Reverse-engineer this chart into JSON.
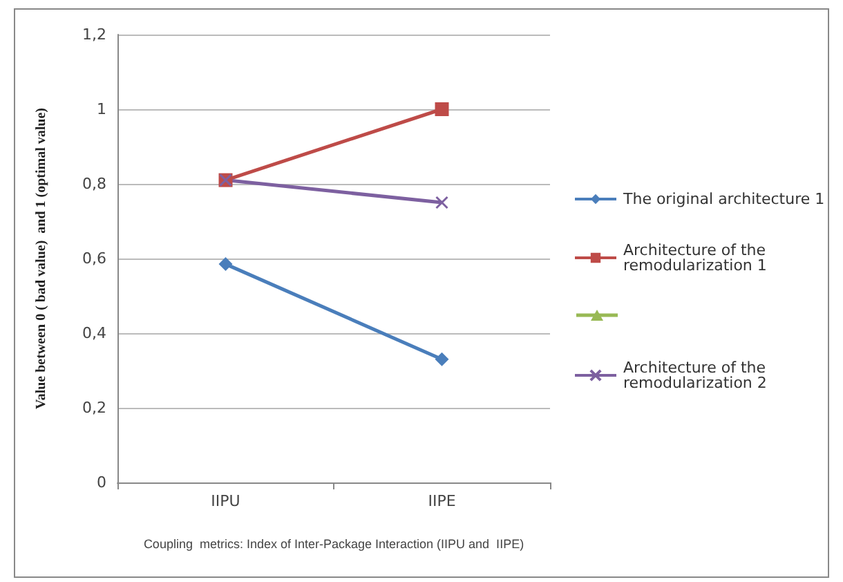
{
  "chart_data": {
    "type": "line",
    "categories": [
      "IIPU",
      "IIPE"
    ],
    "xlabel": "Coupling  metrics: Index of Inter-Package Interaction (IIPU and  IIPE)",
    "ylabel": "Value between 0 ( bad value)  and 1 (optimal value)",
    "ylim": [
      0,
      1.2
    ],
    "yticks": [
      0,
      {
        "value": 0.2,
        "label": "0,2"
      },
      {
        "value": 0.4,
        "label": "0,4"
      },
      {
        "value": 0.6,
        "label": "0,6"
      },
      {
        "value": 0.8,
        "label": "0,8"
      },
      1,
      {
        "value": 1.2,
        "label": "1,2"
      }
    ],
    "grid": "y",
    "legend": "right",
    "series": [
      {
        "name": "The original architecture 1",
        "color": "#4a7ebb",
        "marker": "diamond",
        "values": [
          0.585,
          0.33
        ]
      },
      {
        "name": "Architecture of the remodularization 1",
        "color": "#be4b48",
        "marker": "square",
        "values": [
          0.81,
          1.0
        ]
      },
      {
        "color": "#98b954",
        "marker": "triangle",
        "values": [
          null,
          null
        ]
      },
      {
        "name": "Architecture of the remodularization 2",
        "color": "#7d60a0",
        "marker": "cross",
        "values": [
          0.81,
          0.75
        ]
      }
    ]
  }
}
